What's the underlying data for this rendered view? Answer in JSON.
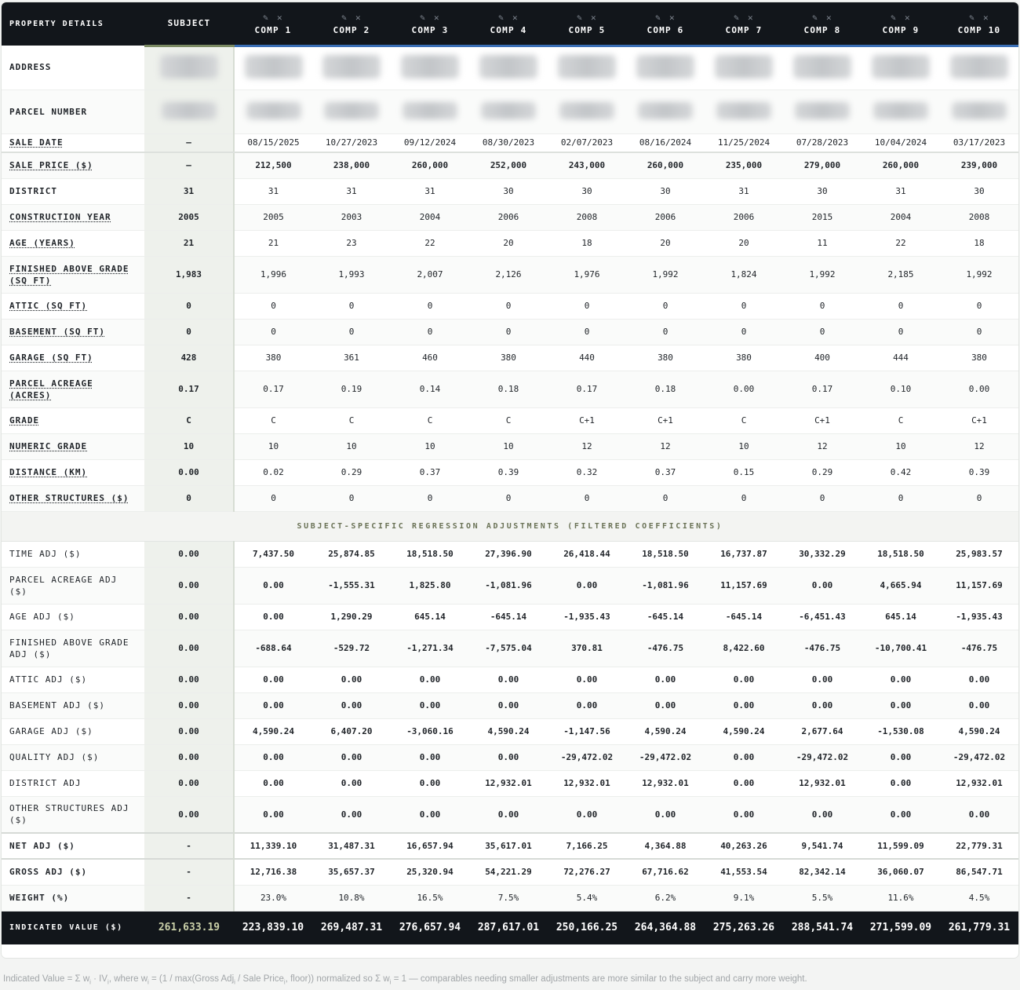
{
  "header": {
    "label": "PROPERTY DETAILS",
    "subject": "SUBJECT",
    "comps": [
      "COMP 1",
      "COMP 2",
      "COMP 3",
      "COMP 4",
      "COMP 5",
      "COMP 6",
      "COMP 7",
      "COMP 8",
      "COMP 9",
      "COMP 10"
    ],
    "edit_icon": "pencil-icon",
    "remove_icon": "close-icon"
  },
  "labels": {
    "address": "ADDRESS",
    "parcel_number": "PARCEL NUMBER",
    "sale_date": "SALE DATE",
    "sale_price": "SALE PRICE ($)",
    "district": "DISTRICT",
    "construction_year": "CONSTRUCTION YEAR",
    "age": "AGE (YEARS)",
    "finished_above_grade": "FINISHED ABOVE GRADE (SQ FT)",
    "attic": "ATTIC (SQ FT)",
    "basement": "BASEMENT (SQ FT)",
    "garage": "GARAGE (SQ FT)",
    "parcel_acreage": "PARCEL ACREAGE (ACRES)",
    "grade": "GRADE",
    "numeric_grade": "NUMERIC GRADE",
    "distance": "DISTANCE (KM)",
    "other_structures": "OTHER STRUCTURES ($)",
    "section": "SUBJECT-SPECIFIC REGRESSION ADJUSTMENTS (FILTERED COEFFICIENTS)",
    "time_adj": "TIME ADJ ($)",
    "parcel_acreage_adj": "PARCEL ACREAGE ADJ ($)",
    "age_adj": "AGE ADJ ($)",
    "finished_above_grade_adj": "FINISHED ABOVE GRADE ADJ ($)",
    "attic_adj": "ATTIC ADJ ($)",
    "basement_adj": "BASEMENT ADJ ($)",
    "garage_adj": "GARAGE ADJ ($)",
    "quality_adj": "QUALITY ADJ ($)",
    "district_adj": "DISTRICT ADJ",
    "other_structures_adj": "OTHER STRUCTURES ADJ ($)",
    "net_adj": "NET ADJ ($)",
    "gross_adj": "GROSS ADJ ($)",
    "weight": "WEIGHT (%)",
    "indicated_value": "INDICATED VALUE ($)"
  },
  "subject": {
    "sale_date": "—",
    "sale_price": "—",
    "district": "31",
    "construction_year": "2005",
    "age": "21",
    "finished_above_grade": "1,983",
    "attic": "0",
    "basement": "0",
    "garage": "428",
    "parcel_acreage": "0.17",
    "grade": "C",
    "numeric_grade": "10",
    "distance": "0.00",
    "other_structures": "0",
    "time_adj": "0.00",
    "parcel_acreage_adj": "0.00",
    "age_adj": "0.00",
    "finished_above_grade_adj": "0.00",
    "attic_adj": "0.00",
    "basement_adj": "0.00",
    "garage_adj": "0.00",
    "quality_adj": "0.00",
    "district_adj": "0.00",
    "other_structures_adj": "0.00",
    "net_adj": "-",
    "gross_adj": "-",
    "weight": "-",
    "indicated_value": "261,633.19"
  },
  "comps": {
    "sale_date": [
      "08/15/2025",
      "10/27/2023",
      "09/12/2024",
      "08/30/2023",
      "02/07/2023",
      "08/16/2024",
      "11/25/2024",
      "07/28/2023",
      "10/04/2024",
      "03/17/2023"
    ],
    "sale_price": [
      "212,500",
      "238,000",
      "260,000",
      "252,000",
      "243,000",
      "260,000",
      "235,000",
      "279,000",
      "260,000",
      "239,000"
    ],
    "district": [
      "31",
      "31",
      "31",
      "30",
      "30",
      "30",
      "31",
      "30",
      "31",
      "30"
    ],
    "construction_year": [
      "2005",
      "2003",
      "2004",
      "2006",
      "2008",
      "2006",
      "2006",
      "2015",
      "2004",
      "2008"
    ],
    "age": [
      "21",
      "23",
      "22",
      "20",
      "18",
      "20",
      "20",
      "11",
      "22",
      "18"
    ],
    "finished_above_grade": [
      "1,996",
      "1,993",
      "2,007",
      "2,126",
      "1,976",
      "1,992",
      "1,824",
      "1,992",
      "2,185",
      "1,992"
    ],
    "attic": [
      "0",
      "0",
      "0",
      "0",
      "0",
      "0",
      "0",
      "0",
      "0",
      "0"
    ],
    "basement": [
      "0",
      "0",
      "0",
      "0",
      "0",
      "0",
      "0",
      "0",
      "0",
      "0"
    ],
    "garage": [
      "380",
      "361",
      "460",
      "380",
      "440",
      "380",
      "380",
      "400",
      "444",
      "380"
    ],
    "parcel_acreage": [
      "0.17",
      "0.19",
      "0.14",
      "0.18",
      "0.17",
      "0.18",
      "0.00",
      "0.17",
      "0.10",
      "0.00"
    ],
    "grade": [
      "C",
      "C",
      "C",
      "C",
      "C+1",
      "C+1",
      "C",
      "C+1",
      "C",
      "C+1"
    ],
    "numeric_grade": [
      "10",
      "10",
      "10",
      "10",
      "12",
      "12",
      "10",
      "12",
      "10",
      "12"
    ],
    "distance": [
      "0.02",
      "0.29",
      "0.37",
      "0.39",
      "0.32",
      "0.37",
      "0.15",
      "0.29",
      "0.42",
      "0.39"
    ],
    "other_structures": [
      "0",
      "0",
      "0",
      "0",
      "0",
      "0",
      "0",
      "0",
      "0",
      "0"
    ],
    "time_adj": [
      "7,437.50",
      "25,874.85",
      "18,518.50",
      "27,396.90",
      "26,418.44",
      "18,518.50",
      "16,737.87",
      "30,332.29",
      "18,518.50",
      "25,983.57"
    ],
    "parcel_acreage_adj": [
      "0.00",
      "-1,555.31",
      "1,825.80",
      "-1,081.96",
      "0.00",
      "-1,081.96",
      "11,157.69",
      "0.00",
      "4,665.94",
      "11,157.69"
    ],
    "age_adj": [
      "0.00",
      "1,290.29",
      "645.14",
      "-645.14",
      "-1,935.43",
      "-645.14",
      "-645.14",
      "-6,451.43",
      "645.14",
      "-1,935.43"
    ],
    "finished_above_grade_adj": [
      "-688.64",
      "-529.72",
      "-1,271.34",
      "-7,575.04",
      "370.81",
      "-476.75",
      "8,422.60",
      "-476.75",
      "-10,700.41",
      "-476.75"
    ],
    "attic_adj": [
      "0.00",
      "0.00",
      "0.00",
      "0.00",
      "0.00",
      "0.00",
      "0.00",
      "0.00",
      "0.00",
      "0.00"
    ],
    "basement_adj": [
      "0.00",
      "0.00",
      "0.00",
      "0.00",
      "0.00",
      "0.00",
      "0.00",
      "0.00",
      "0.00",
      "0.00"
    ],
    "garage_adj": [
      "4,590.24",
      "6,407.20",
      "-3,060.16",
      "4,590.24",
      "-1,147.56",
      "4,590.24",
      "4,590.24",
      "2,677.64",
      "-1,530.08",
      "4,590.24"
    ],
    "quality_adj": [
      "0.00",
      "0.00",
      "0.00",
      "0.00",
      "-29,472.02",
      "-29,472.02",
      "0.00",
      "-29,472.02",
      "0.00",
      "-29,472.02"
    ],
    "district_adj": [
      "0.00",
      "0.00",
      "0.00",
      "12,932.01",
      "12,932.01",
      "12,932.01",
      "0.00",
      "12,932.01",
      "0.00",
      "12,932.01"
    ],
    "other_structures_adj": [
      "0.00",
      "0.00",
      "0.00",
      "0.00",
      "0.00",
      "0.00",
      "0.00",
      "0.00",
      "0.00",
      "0.00"
    ],
    "net_adj": [
      "11,339.10",
      "31,487.31",
      "16,657.94",
      "35,617.01",
      "7,166.25",
      "4,364.88",
      "40,263.26",
      "9,541.74",
      "11,599.09",
      "22,779.31"
    ],
    "gross_adj": [
      "12,716.38",
      "35,657.37",
      "25,320.94",
      "54,221.29",
      "72,276.27",
      "67,716.62",
      "41,553.54",
      "82,342.14",
      "36,060.07",
      "86,547.71"
    ],
    "weight": [
      "23.0%",
      "10.8%",
      "16.5%",
      "7.5%",
      "5.4%",
      "6.2%",
      "9.1%",
      "5.5%",
      "11.6%",
      "4.5%"
    ],
    "indicated_value": [
      "223,839.10",
      "269,487.31",
      "276,657.94",
      "287,617.01",
      "250,166.25",
      "264,364.88",
      "275,263.26",
      "288,541.74",
      "271,599.09",
      "261,779.31"
    ]
  },
  "colors": {
    "positive": "#2d9a45",
    "negative": "#cc3b3b",
    "header_bg": "#12161b",
    "subject_bg": "#eef1ec"
  },
  "footnote": {
    "p1": "Indicated Value = Σ w",
    "s1": "i",
    "p2": " · IV",
    "s2": "i",
    "p3": ", where w",
    "s3": "i",
    "p4": " = (1 / max(Gross Adj",
    "s4": "i",
    "p5": " / Sale Price",
    "s5": "i",
    "p6": ", floor)) normalized so Σ w",
    "s6": "i",
    "p7": " = 1 — comparables needing smaller adjustments are more similar to the subject and carry more weight."
  }
}
